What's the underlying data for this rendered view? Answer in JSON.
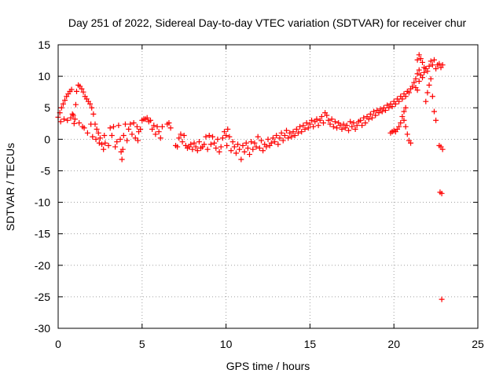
{
  "chart_data": {
    "type": "scatter",
    "title": "Day 251 of 2022, Sidereal Day-to-day VTEC variation (SDTVAR) for receiver chur",
    "xlabel": "GPS time / hours",
    "ylabel": "SDTVAR / TECUs",
    "xlim": [
      0,
      25
    ],
    "ylim": [
      -30,
      15
    ],
    "xticks": [
      0,
      5,
      10,
      15,
      20,
      25
    ],
    "yticks": [
      15,
      10,
      5,
      0,
      -5,
      -10,
      -15,
      -20,
      -25,
      -30
    ],
    "grid": true,
    "marker": "+",
    "series": [
      {
        "name": "SDTVAR",
        "color": "#ff0000",
        "points": [
          [
            0.0,
            3.5
          ],
          [
            0.1,
            4.2
          ],
          [
            0.15,
            2.8
          ],
          [
            0.2,
            5.0
          ],
          [
            0.3,
            5.6
          ],
          [
            0.35,
            3.2
          ],
          [
            0.4,
            6.2
          ],
          [
            0.5,
            6.8
          ],
          [
            0.55,
            3.0
          ],
          [
            0.6,
            7.2
          ],
          [
            0.7,
            7.6
          ],
          [
            0.75,
            3.4
          ],
          [
            0.8,
            7.9
          ],
          [
            0.85,
            4.0
          ],
          [
            0.9,
            3.8
          ],
          [
            0.95,
            2.5
          ],
          [
            1.0,
            3.2
          ],
          [
            1.05,
            5.5
          ],
          [
            1.1,
            7.6
          ],
          [
            1.2,
            8.6
          ],
          [
            1.25,
            2.6
          ],
          [
            1.3,
            8.4
          ],
          [
            1.4,
            8.0
          ],
          [
            1.45,
            2.0
          ],
          [
            1.5,
            7.5
          ],
          [
            1.55,
            1.8
          ],
          [
            1.6,
            6.8
          ],
          [
            1.7,
            6.4
          ],
          [
            1.75,
            1.0
          ],
          [
            1.8,
            6.0
          ],
          [
            1.9,
            5.6
          ],
          [
            1.95,
            2.4
          ],
          [
            2.0,
            5.0
          ],
          [
            2.05,
            0.4
          ],
          [
            2.1,
            4.0
          ],
          [
            2.2,
            2.4
          ],
          [
            2.25,
            0.0
          ],
          [
            2.3,
            1.6
          ],
          [
            2.4,
            1.0
          ],
          [
            2.45,
            -0.6
          ],
          [
            2.5,
            0.2
          ],
          [
            2.6,
            -0.8
          ],
          [
            2.7,
            -1.6
          ],
          [
            2.75,
            0.6
          ],
          [
            2.8,
            -0.6
          ],
          [
            3.0,
            -1.0
          ],
          [
            3.1,
            1.8
          ],
          [
            3.2,
            0.6
          ],
          [
            3.3,
            2.0
          ],
          [
            3.4,
            -1.2
          ],
          [
            3.5,
            -0.4
          ],
          [
            3.6,
            2.2
          ],
          [
            3.7,
            0.0
          ],
          [
            3.75,
            -2.0
          ],
          [
            3.8,
            -3.2
          ],
          [
            3.85,
            -1.6
          ],
          [
            3.9,
            0.6
          ],
          [
            4.0,
            2.4
          ],
          [
            4.1,
            -0.2
          ],
          [
            4.2,
            1.6
          ],
          [
            4.3,
            2.4
          ],
          [
            4.4,
            0.8
          ],
          [
            4.5,
            2.6
          ],
          [
            4.6,
            0.2
          ],
          [
            4.7,
            2.0
          ],
          [
            4.75,
            -0.2
          ],
          [
            4.8,
            1.2
          ],
          [
            4.9,
            1.6
          ],
          [
            5.0,
            3.0
          ],
          [
            5.1,
            3.2
          ],
          [
            5.2,
            3.2
          ],
          [
            5.3,
            3.4
          ],
          [
            5.4,
            2.8
          ],
          [
            5.5,
            3.0
          ],
          [
            5.6,
            1.6
          ],
          [
            5.7,
            2.2
          ],
          [
            5.8,
            0.8
          ],
          [
            5.9,
            2.0
          ],
          [
            6.0,
            1.2
          ],
          [
            6.1,
            0.2
          ],
          [
            6.2,
            2.0
          ],
          [
            6.5,
            2.4
          ],
          [
            6.6,
            2.6
          ],
          [
            6.7,
            1.8
          ],
          [
            7.0,
            -1.0
          ],
          [
            7.1,
            -1.2
          ],
          [
            7.2,
            0.2
          ],
          [
            7.3,
            0.8
          ],
          [
            7.4,
            -0.4
          ],
          [
            7.5,
            0.6
          ],
          [
            7.6,
            -1.0
          ],
          [
            7.7,
            -1.4
          ],
          [
            7.8,
            -1.2
          ],
          [
            7.9,
            -0.8
          ],
          [
            8.0,
            -1.6
          ],
          [
            8.1,
            -0.6
          ],
          [
            8.2,
            -1.2
          ],
          [
            8.3,
            -1.8
          ],
          [
            8.4,
            -0.4
          ],
          [
            8.5,
            -1.4
          ],
          [
            8.6,
            -1.2
          ],
          [
            8.7,
            -0.8
          ],
          [
            8.8,
            0.4
          ],
          [
            8.9,
            -1.6
          ],
          [
            9.0,
            0.6
          ],
          [
            9.1,
            -0.8
          ],
          [
            9.2,
            0.4
          ],
          [
            9.3,
            -0.6
          ],
          [
            9.4,
            -1.4
          ],
          [
            9.5,
            0.0
          ],
          [
            9.6,
            -2.0
          ],
          [
            9.7,
            -1.2
          ],
          [
            9.8,
            0.2
          ],
          [
            9.9,
            1.2
          ],
          [
            10.0,
            0.6
          ],
          [
            10.05,
            -1.0
          ],
          [
            10.1,
            1.6
          ],
          [
            10.2,
            0.4
          ],
          [
            10.3,
            -1.8
          ],
          [
            10.4,
            -0.4
          ],
          [
            10.5,
            -1.2
          ],
          [
            10.6,
            -2.2
          ],
          [
            10.7,
            -0.8
          ],
          [
            10.8,
            -1.6
          ],
          [
            10.9,
            -3.2
          ],
          [
            11.0,
            -1.0
          ],
          [
            11.1,
            -2.0
          ],
          [
            11.2,
            -0.6
          ],
          [
            11.3,
            -1.4
          ],
          [
            11.4,
            -2.4
          ],
          [
            11.5,
            -0.4
          ],
          [
            11.6,
            -1.6
          ],
          [
            11.7,
            -0.6
          ],
          [
            11.8,
            -1.2
          ],
          [
            11.9,
            0.4
          ],
          [
            12.0,
            -1.4
          ],
          [
            12.1,
            -0.2
          ],
          [
            12.2,
            -1.8
          ],
          [
            12.3,
            -0.8
          ],
          [
            12.4,
            -1.2
          ],
          [
            12.5,
            0.0
          ],
          [
            12.6,
            -1.0
          ],
          [
            12.7,
            -0.6
          ],
          [
            12.8,
            0.2
          ],
          [
            12.9,
            -0.4
          ],
          [
            13.0,
            0.6
          ],
          [
            13.1,
            -0.8
          ],
          [
            13.2,
            0.2
          ],
          [
            13.3,
            1.0
          ],
          [
            13.4,
            -0.2
          ],
          [
            13.5,
            0.6
          ],
          [
            13.6,
            1.4
          ],
          [
            13.7,
            0.2
          ],
          [
            13.8,
            1.0
          ],
          [
            13.9,
            0.4
          ],
          [
            14.0,
            1.2
          ],
          [
            14.1,
            0.6
          ],
          [
            14.2,
            1.6
          ],
          [
            14.3,
            1.0
          ],
          [
            14.4,
            2.0
          ],
          [
            14.5,
            1.2
          ],
          [
            14.6,
            2.2
          ],
          [
            14.7,
            1.6
          ],
          [
            14.8,
            2.6
          ],
          [
            14.9,
            1.8
          ],
          [
            15.0,
            2.4
          ],
          [
            15.1,
            3.0
          ],
          [
            15.2,
            2.0
          ],
          [
            15.3,
            2.8
          ],
          [
            15.4,
            3.2
          ],
          [
            15.5,
            2.2
          ],
          [
            15.6,
            3.0
          ],
          [
            15.7,
            3.6
          ],
          [
            15.8,
            2.6
          ],
          [
            15.9,
            4.2
          ],
          [
            16.0,
            3.8
          ],
          [
            16.1,
            3.0
          ],
          [
            16.2,
            2.4
          ],
          [
            16.3,
            3.2
          ],
          [
            16.4,
            2.0
          ],
          [
            16.5,
            2.8
          ],
          [
            16.6,
            1.8
          ],
          [
            16.7,
            2.6
          ],
          [
            16.8,
            2.2
          ],
          [
            16.9,
            1.6
          ],
          [
            17.0,
            2.4
          ],
          [
            17.1,
            1.8
          ],
          [
            17.2,
            2.2
          ],
          [
            17.3,
            1.4
          ],
          [
            17.4,
            2.8
          ],
          [
            17.5,
            2.0
          ],
          [
            17.6,
            2.6
          ],
          [
            17.7,
            1.6
          ],
          [
            17.8,
            2.2
          ],
          [
            17.9,
            2.8
          ],
          [
            18.0,
            3.0
          ],
          [
            18.1,
            2.2
          ],
          [
            18.2,
            3.4
          ],
          [
            18.3,
            2.6
          ],
          [
            18.4,
            3.6
          ],
          [
            18.5,
            3.2
          ],
          [
            18.6,
            4.0
          ],
          [
            18.7,
            3.4
          ],
          [
            18.8,
            4.4
          ],
          [
            18.9,
            3.8
          ],
          [
            19.0,
            4.6
          ],
          [
            19.1,
            4.2
          ],
          [
            19.2,
            4.8
          ],
          [
            19.3,
            4.4
          ],
          [
            19.4,
            5.0
          ],
          [
            19.5,
            4.6
          ],
          [
            19.6,
            5.4
          ],
          [
            19.7,
            5.0
          ],
          [
            19.8,
            5.6
          ],
          [
            19.9,
            5.2
          ],
          [
            20.0,
            6.0
          ],
          [
            20.1,
            5.6
          ],
          [
            20.2,
            6.4
          ],
          [
            20.3,
            6.0
          ],
          [
            20.4,
            6.8
          ],
          [
            20.5,
            6.4
          ],
          [
            20.6,
            7.2
          ],
          [
            20.7,
            6.8
          ],
          [
            20.8,
            7.6
          ],
          [
            20.9,
            7.4
          ],
          [
            20.8,
            0.8
          ],
          [
            20.9,
            -0.2
          ],
          [
            21.0,
            -0.6
          ],
          [
            20.7,
            2.0
          ],
          [
            20.6,
            3.0
          ],
          [
            19.8,
            1.0
          ],
          [
            19.9,
            1.2
          ],
          [
            20.0,
            1.4
          ],
          [
            20.1,
            1.2
          ],
          [
            20.2,
            1.6
          ],
          [
            20.3,
            2.0
          ],
          [
            20.4,
            2.6
          ],
          [
            20.5,
            3.6
          ],
          [
            20.6,
            4.4
          ],
          [
            20.7,
            5.0
          ],
          [
            21.0,
            8.0
          ],
          [
            21.1,
            8.4
          ],
          [
            21.2,
            9.0
          ],
          [
            21.3,
            9.6
          ],
          [
            21.4,
            10.4
          ],
          [
            21.5,
            11.0
          ],
          [
            21.4,
            12.6
          ],
          [
            21.5,
            13.4
          ],
          [
            21.6,
            12.8
          ],
          [
            21.7,
            12.2
          ],
          [
            21.8,
            11.4
          ],
          [
            21.3,
            8.2
          ],
          [
            21.4,
            7.8
          ],
          [
            21.5,
            9.2
          ],
          [
            21.6,
            10.2
          ],
          [
            21.7,
            9.8
          ],
          [
            21.8,
            10.6
          ],
          [
            21.9,
            11.2
          ],
          [
            22.0,
            10.8
          ],
          [
            22.1,
            11.6
          ],
          [
            22.2,
            12.4
          ],
          [
            22.3,
            11.8
          ],
          [
            22.4,
            12.6
          ],
          [
            22.5,
            11.2
          ],
          [
            22.6,
            11.8
          ],
          [
            22.7,
            12.0
          ],
          [
            22.8,
            11.4
          ],
          [
            22.9,
            11.8
          ],
          [
            21.9,
            6.0
          ],
          [
            22.0,
            7.4
          ],
          [
            22.1,
            8.6
          ],
          [
            22.2,
            9.6
          ],
          [
            22.3,
            6.8
          ],
          [
            22.4,
            4.4
          ],
          [
            22.5,
            3.0
          ],
          [
            22.7,
            -1.0
          ],
          [
            22.8,
            -1.2
          ],
          [
            22.9,
            -1.6
          ],
          [
            22.75,
            -8.4
          ],
          [
            22.85,
            -8.6
          ],
          [
            22.85,
            -25.4
          ]
        ]
      }
    ]
  }
}
